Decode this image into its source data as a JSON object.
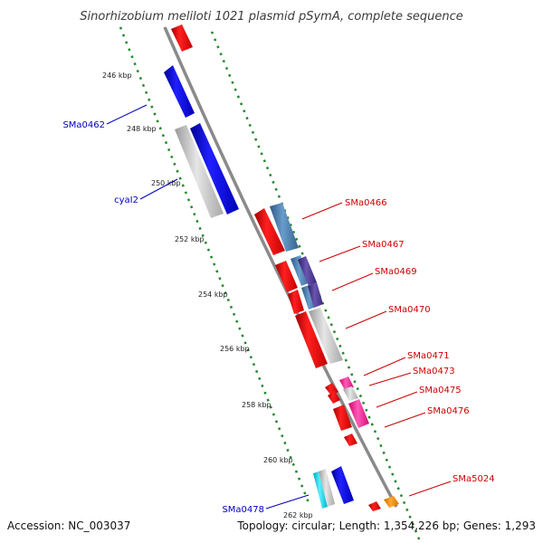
{
  "title": "Sinorhizobium meliloti 1021 plasmid pSymA, complete sequence",
  "footer": {
    "accession": "Accession: NC_003037",
    "summary": "Topology: circular; Length: 1,354,226 bp; Genes: 1,293"
  },
  "colors": {
    "red": "#ee1111",
    "blue": "#1414e6",
    "gray": "#c2c2c2",
    "steel": "#4a7fb0",
    "purple": "#553d93",
    "pink": "#ff2a9e",
    "cyan": "#19d9ee",
    "orange": "#ff8a00",
    "tick_dots": "#22882c",
    "backbone": "#8a8a8a",
    "label_red": "#cc0000",
    "label_blue": "#0000bb"
  },
  "scale_ticks": [
    {
      "kbp": 246,
      "label": "246 kbp"
    },
    {
      "kbp": 248,
      "label": "248 kbp"
    },
    {
      "kbp": 250,
      "label": "250 kbp"
    },
    {
      "kbp": 252,
      "label": "252 kbp"
    },
    {
      "kbp": 254,
      "label": "254 kbp"
    },
    {
      "kbp": 256,
      "label": "256 kbp"
    },
    {
      "kbp": 258,
      "label": "258 kbp"
    },
    {
      "kbp": 260,
      "label": "260 kbp"
    },
    {
      "kbp": 262,
      "label": "262 kbp"
    }
  ],
  "gene_labels": [
    {
      "name": "SMa0462",
      "side": "left",
      "color": "blue"
    },
    {
      "name": "cyaI2",
      "side": "left",
      "color": "blue"
    },
    {
      "name": "SMa0478",
      "side": "left",
      "color": "blue"
    },
    {
      "name": "SMa0466",
      "side": "right",
      "color": "red"
    },
    {
      "name": "SMa0467",
      "side": "right",
      "color": "red"
    },
    {
      "name": "SMa0469",
      "side": "right",
      "color": "red"
    },
    {
      "name": "SMa0470",
      "side": "right",
      "color": "red"
    },
    {
      "name": "SMa0471",
      "side": "right",
      "color": "red"
    },
    {
      "name": "SMa0473",
      "side": "right",
      "color": "red"
    },
    {
      "name": "SMa0475",
      "side": "right",
      "color": "red"
    },
    {
      "name": "SMa0476",
      "side": "right",
      "color": "red"
    },
    {
      "name": "SMa5024",
      "side": "right",
      "color": "red"
    }
  ]
}
